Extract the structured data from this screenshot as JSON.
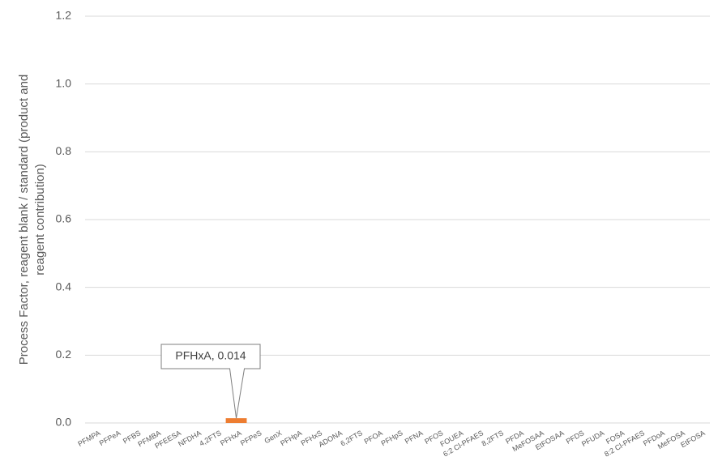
{
  "chart_data": {
    "type": "bar",
    "ylabel": [
      "Process Factor, reagent blank / standard (product and",
      "reagent contribution)"
    ],
    "categories": [
      "PFMPA",
      "PFPeA",
      "PFBS",
      "PFMBA",
      "PFEESA",
      "NFDHA",
      "4,2FTS",
      "PFHxA",
      "PFPeS",
      "GenX",
      "PFHpA",
      "PFHxS",
      "ADONA",
      "6,2FTS",
      "PFOA",
      "PFHpS",
      "PFNA",
      "PFOS",
      "FOUEA",
      "6:2 Cl-PFAES",
      "8,2FTS",
      "PFDA",
      "MeFOSAA",
      "EtFOSAA",
      "PFDS",
      "PFUDA",
      "FOSA",
      "8:2 Cl-PFAES",
      "PFDoA",
      "MeFOSA",
      "EtFOSA"
    ],
    "values": [
      0,
      0,
      0,
      0,
      0,
      0,
      0,
      0.014,
      0,
      0,
      0,
      0,
      0,
      0,
      0,
      0,
      0,
      0,
      0,
      0,
      0,
      0,
      0,
      0,
      0,
      0,
      0,
      0,
      0,
      0,
      0
    ],
    "color": "#ed7d31",
    "annotation": "PFHxA, 0.014",
    "ylim": [
      0,
      1.2
    ],
    "yticks": [
      {
        "value": 0,
        "label": "0.0"
      },
      0.2,
      0.4,
      0.6,
      0.8,
      {
        "value": 1,
        "label": "1.0"
      },
      1.2
    ],
    "grid": true
  }
}
